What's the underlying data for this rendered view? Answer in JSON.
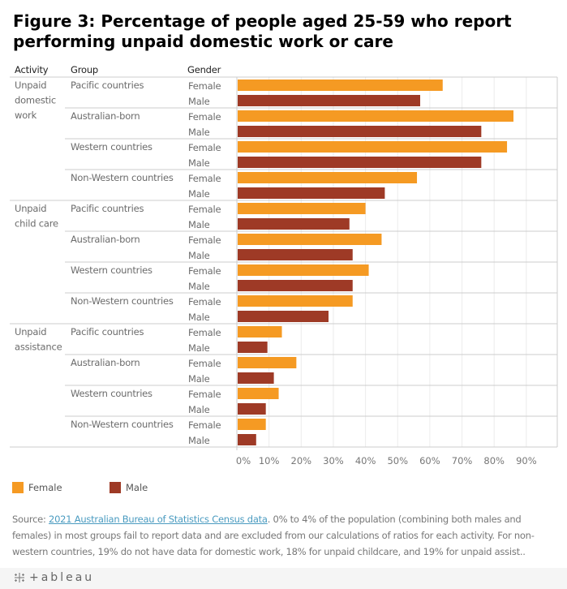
{
  "title": "Figure 3: Percentage of people aged 25-59 who report performing unpaid domestic work or care",
  "headers": {
    "activity": "Activity",
    "group": "Group",
    "gender": "Gender"
  },
  "colors": {
    "Female": "#F59A23",
    "Male": "#9E3A26",
    "grid": "#ececec",
    "border": "#cccccc"
  },
  "chart_data": {
    "type": "bar",
    "orientation": "horizontal",
    "title": "Figure 3: Percentage of people aged 25-59 who report performing unpaid domestic work or care",
    "xlabel": "",
    "ylabel": "",
    "xlim": [
      0,
      100
    ],
    "x_ticks": [
      "0%",
      "10%",
      "20%",
      "30%",
      "40%",
      "50%",
      "60%",
      "70%",
      "80%",
      "90%"
    ],
    "grid": true,
    "legend": {
      "placement": "bottom-left",
      "entries": [
        "Female",
        "Male"
      ]
    },
    "series_names": [
      "Female",
      "Male"
    ],
    "activities": [
      {
        "label": "Unpaid domestic work",
        "label_lines": [
          "Unpaid",
          "domestic",
          "work"
        ],
        "groups": [
          {
            "label": "Pacific countries",
            "values": {
              "Female": 64,
              "Male": 57
            }
          },
          {
            "label": "Australian-born",
            "values": {
              "Female": 86,
              "Male": 76
            }
          },
          {
            "label": "Western countries",
            "values": {
              "Female": 84,
              "Male": 76
            }
          },
          {
            "label": "Non-Western countries",
            "values": {
              "Female": 56,
              "Male": 46
            }
          }
        ]
      },
      {
        "label": "Unpaid child care",
        "label_lines": [
          "Unpaid",
          "child care"
        ],
        "groups": [
          {
            "label": "Pacific countries",
            "values": {
              "Female": 40,
              "Male": 35
            }
          },
          {
            "label": "Australian-born",
            "values": {
              "Female": 45,
              "Male": 36
            }
          },
          {
            "label": "Western countries",
            "values": {
              "Female": 41,
              "Male": 36
            }
          },
          {
            "label": "Non-Western countries",
            "values": {
              "Female": 36,
              "Male": 28.5
            }
          }
        ]
      },
      {
        "label": "Unpaid assistance",
        "label_lines": [
          "Unpaid",
          "assistance"
        ],
        "groups": [
          {
            "label": "Pacific countries",
            "values": {
              "Female": 14,
              "Male": 9.5
            }
          },
          {
            "label": "Australian-born",
            "values": {
              "Female": 18.5,
              "Male": 11.5
            }
          },
          {
            "label": "Western countries",
            "values": {
              "Female": 13,
              "Male": 9
            }
          },
          {
            "label": "Non-Western countries",
            "values": {
              "Female": 9,
              "Male": 6
            }
          }
        ]
      }
    ]
  },
  "legend": {
    "female": "Female",
    "male": "Male"
  },
  "source": {
    "prefix": "Source: ",
    "link_text": "2021 Australian Bureau of Statistics Census data",
    "text": ". 0% to 4% of the population (combining both males and females) in most groups fail to report data and are excluded from our calculations of ratios for each activity. For non-western countries, 19% do not have data for domestic work, 18% for unpaid childcare, and 19% for unpaid assist.."
  },
  "footer": {
    "logo_text": "+ableau"
  }
}
